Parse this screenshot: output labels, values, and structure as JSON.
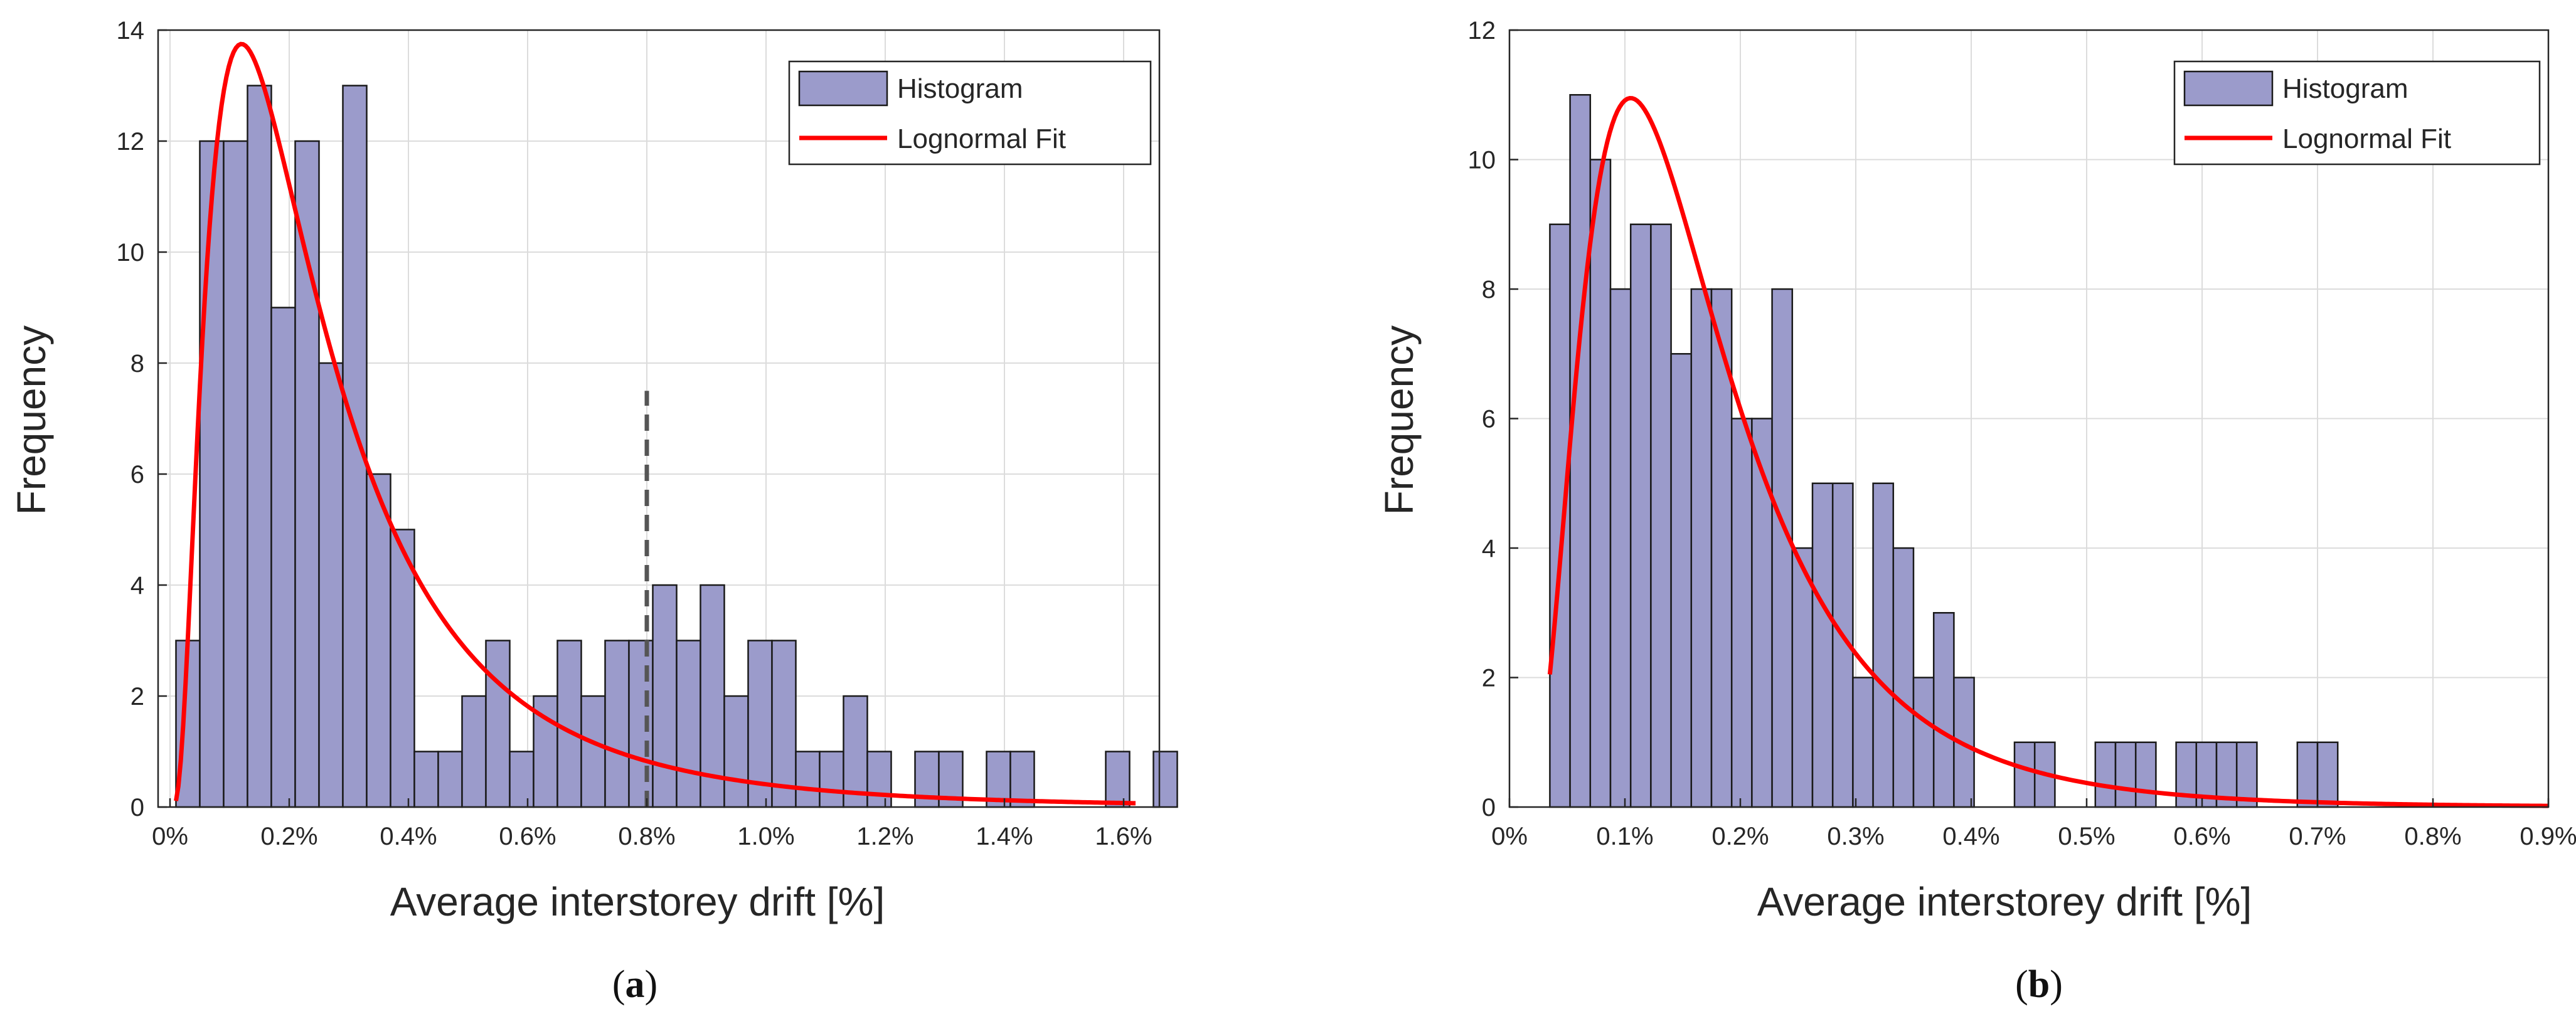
{
  "chart_data": [
    {
      "panel": "a",
      "caption": {
        "open": "(",
        "letter": "a",
        "close": ")"
      },
      "type": "bar",
      "title": "",
      "xlabel": "Average interstorey drift [%]",
      "ylabel": "Frequency",
      "xlim": [
        -0.02,
        1.66
      ],
      "ylim": [
        0,
        14
      ],
      "xticks": [
        0,
        0.2,
        0.4,
        0.6,
        0.8,
        1.0,
        1.2,
        1.4,
        1.6
      ],
      "xtick_labels": [
        "0%",
        "0.2%",
        "0.4%",
        "0.6%",
        "0.8%",
        "1.0%",
        "1.2%",
        "1.4%",
        "1.6%"
      ],
      "yticks": [
        0,
        2,
        4,
        6,
        8,
        10,
        12,
        14
      ],
      "ytick_labels": [
        "0",
        "2",
        "4",
        "6",
        "8",
        "10",
        "12",
        "14"
      ],
      "grid": true,
      "legend": {
        "location": "top-right",
        "entries": [
          "Histogram",
          "Lognormal Fit"
        ]
      },
      "bin_start": 0.01,
      "bin_width": 0.04,
      "values": [
        3,
        12,
        12,
        13,
        9,
        12,
        8,
        13,
        6,
        5,
        1,
        1,
        2,
        3,
        1,
        2,
        3,
        2,
        3,
        3,
        4,
        3,
        4,
        2,
        3,
        3,
        1,
        1,
        2,
        1,
        0,
        1,
        1,
        0,
        1,
        1,
        0,
        0,
        0,
        1,
        0,
        1
      ],
      "fit": {
        "type": "lognormal",
        "mode_x": 0.12,
        "mode_y": 13.75,
        "sigma": 0.8,
        "x_min": 0.01,
        "x_max": 1.62
      },
      "threshold_line": {
        "x": 0.8,
        "y_top": 7.5,
        "style": "dashed"
      },
      "colors": {
        "bar_fill": "#9b9bcb",
        "bar_edge": "#1a1a1a",
        "fit_line": "#ff0000",
        "threshold": "#555555",
        "grid": "#dcdcdc"
      }
    },
    {
      "panel": "b",
      "caption": {
        "open": "(",
        "letter": "b",
        "close": ")"
      },
      "type": "bar",
      "title": "",
      "xlabel": "Average interstorey drift [%]",
      "ylabel": "Frequency",
      "xlim": [
        0,
        0.9
      ],
      "ylim": [
        0,
        12
      ],
      "xticks": [
        0,
        0.1,
        0.2,
        0.3,
        0.4,
        0.5,
        0.6,
        0.7,
        0.8,
        0.9
      ],
      "xtick_labels": [
        "0%",
        "0.1%",
        "0.2%",
        "0.3%",
        "0.4%",
        "0.5%",
        "0.6%",
        "0.7%",
        "0.8%",
        "0.9%"
      ],
      "yticks": [
        0,
        2,
        4,
        6,
        8,
        10,
        12
      ],
      "ytick_labels": [
        "0",
        "2",
        "4",
        "6",
        "8",
        "10",
        "12"
      ],
      "grid": true,
      "legend": {
        "location": "top-right",
        "entries": [
          "Histogram",
          "Lognormal Fit"
        ]
      },
      "bin_start": 0.035,
      "bin_width": 0.0175,
      "values": [
        9,
        11,
        10,
        8,
        9,
        9,
        7,
        8,
        8,
        6,
        6,
        8,
        4,
        5,
        5,
        2,
        5,
        4,
        2,
        3,
        2,
        0,
        0,
        1,
        1,
        0,
        0,
        1,
        1,
        1,
        0,
        1,
        1,
        1,
        1,
        0,
        0,
        1,
        1,
        0,
        0
      ],
      "fit": {
        "type": "lognormal",
        "mode_x": 0.105,
        "mode_y": 10.95,
        "sigma": 0.6,
        "x_min": 0.035,
        "x_max": 0.9
      },
      "colors": {
        "bar_fill": "#9b9bcb",
        "bar_edge": "#1a1a1a",
        "fit_line": "#ff0000",
        "grid": "#dcdcdc"
      }
    }
  ]
}
